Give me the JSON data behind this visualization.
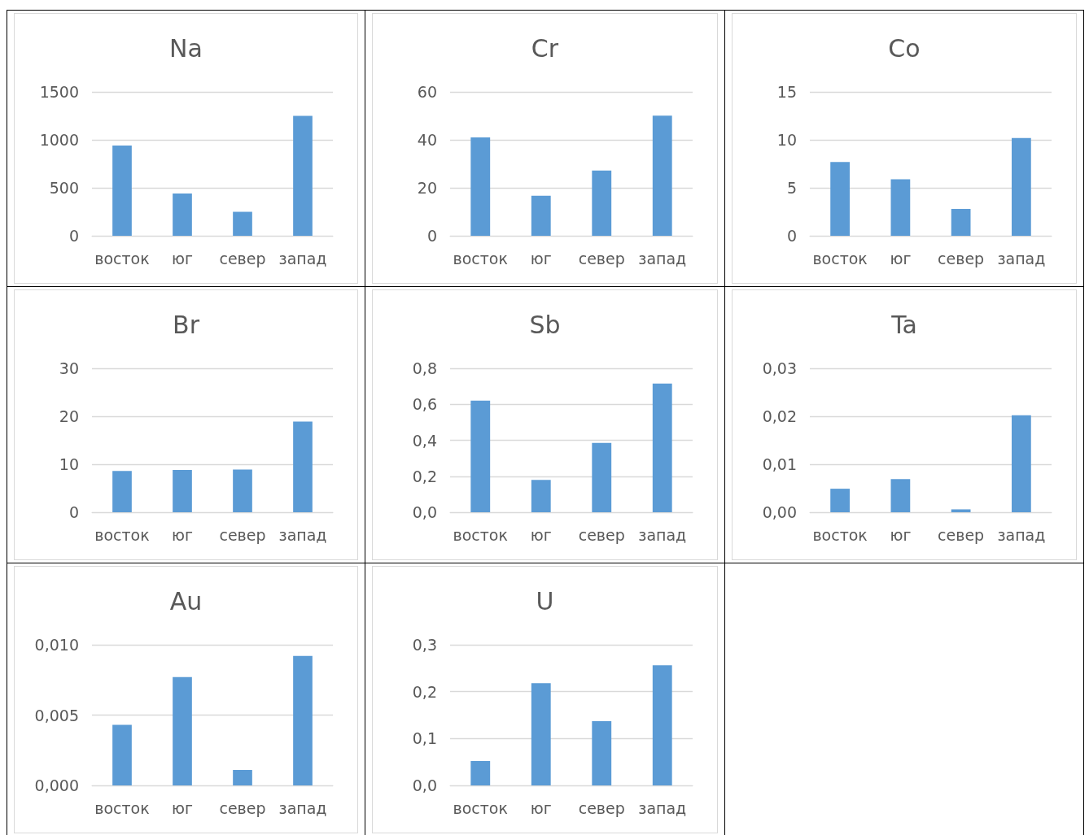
{
  "chart_data": [
    {
      "type": "bar",
      "title": "Na",
      "categories": [
        "восток",
        "юг",
        "север",
        "запад"
      ],
      "values": [
        940,
        440,
        250,
        1250
      ],
      "color": "#5b9bd5",
      "ylim": [
        0,
        1500
      ],
      "yticks": [
        0,
        500,
        1000,
        1500
      ],
      "grid": "y"
    },
    {
      "type": "bar",
      "title": "Cr",
      "categories": [
        "восток",
        "юг",
        "север",
        "запад"
      ],
      "values": [
        41,
        16.7,
        27.2,
        50.1
      ],
      "color": "#5b9bd5",
      "ylim": [
        0,
        60
      ],
      "yticks": [
        0,
        20,
        40,
        60
      ],
      "grid": "y"
    },
    {
      "type": "bar",
      "title": "Co",
      "categories": [
        "восток",
        "юг",
        "север",
        "запад"
      ],
      "values": [
        7.7,
        5.9,
        2.8,
        10.2
      ],
      "color": "#5b9bd5",
      "ylim": [
        0,
        15
      ],
      "yticks": [
        0,
        5,
        10,
        15
      ],
      "grid": "y"
    },
    {
      "type": "bar",
      "title": "Br",
      "categories": [
        "восток",
        "юг",
        "север",
        "запад"
      ],
      "values": [
        8.6,
        8.8,
        8.9,
        18.9
      ],
      "color": "#5b9bd5",
      "ylim": [
        0,
        30
      ],
      "yticks": [
        0,
        10,
        20,
        30
      ],
      "grid": "y"
    },
    {
      "type": "bar",
      "title": "Sb",
      "categories": [
        "восток",
        "юг",
        "север",
        "запад"
      ],
      "values": [
        0.62,
        0.18,
        0.385,
        0.715
      ],
      "color": "#5b9bd5",
      "ylim": [
        0,
        0.8
      ],
      "yticks": [
        {
          "value": 0,
          "label": "0,0"
        },
        {
          "value": 0.2,
          "label": "0,2"
        },
        {
          "value": 0.4,
          "label": "0,4"
        },
        {
          "value": 0.6,
          "label": "0,6"
        },
        {
          "value": 0.8,
          "label": "0,8"
        }
      ],
      "grid": "y"
    },
    {
      "type": "bar",
      "title": "Ta",
      "categories": [
        "восток",
        "юг",
        "север",
        "запад"
      ],
      "values": [
        0.0049,
        0.0069,
        0.0006,
        0.0202
      ],
      "color": "#5b9bd5",
      "ylim": [
        0,
        0.03
      ],
      "yticks": [
        {
          "value": 0,
          "label": "0,00"
        },
        {
          "value": 0.01,
          "label": "0,01"
        },
        {
          "value": 0.02,
          "label": "0,02"
        },
        {
          "value": 0.03,
          "label": "0,03"
        }
      ],
      "grid": "y"
    },
    {
      "type": "bar",
      "title": "Au",
      "categories": [
        "восток",
        "юг",
        "север",
        "запад"
      ],
      "values": [
        0.0043,
        0.0077,
        0.0011,
        0.0092
      ],
      "color": "#5b9bd5",
      "ylim": [
        0,
        0.01
      ],
      "yticks": [
        {
          "value": 0,
          "label": "0,000"
        },
        {
          "value": 0.005,
          "label": "0,005"
        },
        {
          "value": 0.01,
          "label": "0,010"
        }
      ],
      "grid": "y"
    },
    {
      "type": "bar",
      "title": "U",
      "categories": [
        "восток",
        "юг",
        "север",
        "запад"
      ],
      "values": [
        0.052,
        0.218,
        0.137,
        0.256
      ],
      "color": "#5b9bd5",
      "ylim": [
        0,
        0.3
      ],
      "yticks": [
        {
          "value": 0,
          "label": "0,0"
        },
        {
          "value": 0.1,
          "label": "0,1"
        },
        {
          "value": 0.2,
          "label": "0,2"
        },
        {
          "value": 0.3,
          "label": "0,3"
        }
      ],
      "grid": "y"
    }
  ]
}
